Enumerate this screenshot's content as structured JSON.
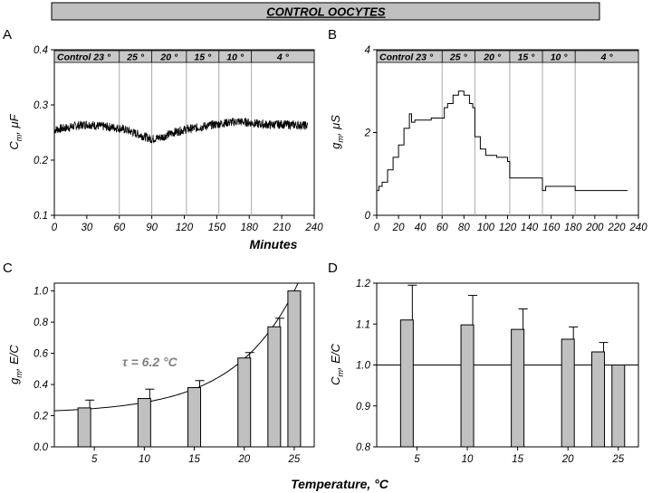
{
  "header": {
    "title": "CONTROL OOCYTES",
    "bg": "#c0c0c0"
  },
  "shared": {
    "minutes_label": "Minutes",
    "temperature_label": "Temperature, °C"
  },
  "panel_letters": [
    "A",
    "B",
    "C",
    "D"
  ],
  "condition_bar": {
    "bg": "#c8c8c8",
    "segments": [
      {
        "label": "Control 23 °",
        "from": 0,
        "to": 60
      },
      {
        "label": "25 °",
        "from": 60,
        "to": 90
      },
      {
        "label": "20 °",
        "from": 90,
        "to": 122
      },
      {
        "label": "15 °",
        "from": 122,
        "to": 152
      },
      {
        "label": "10 °",
        "from": 152,
        "to": 182
      },
      {
        "label": "4 °",
        "from": 182,
        "to": 240
      }
    ]
  },
  "chart_data": [
    {
      "panel": "A",
      "type": "line",
      "ylabel": "Cm, μF",
      "ylabel_main": "C",
      "ylabel_sub": "m",
      "ylabel_rest": ", μF",
      "xlim": [
        0,
        240
      ],
      "ylim": [
        0.1,
        0.4
      ],
      "xticks": [
        0,
        30,
        60,
        90,
        120,
        150,
        180,
        210,
        240
      ],
      "yticks": [
        0.1,
        0.2,
        0.3,
        0.4
      ],
      "ytick_labels": [
        "0.1",
        "0.2",
        "0.3",
        "0.4"
      ],
      "vlines": [
        60,
        90,
        122,
        152,
        182
      ],
      "x": [
        0,
        10,
        20,
        30,
        40,
        50,
        60,
        70,
        80,
        90,
        100,
        110,
        120,
        130,
        140,
        150,
        160,
        170,
        180,
        190,
        200,
        210,
        220,
        230,
        234
      ],
      "y": [
        0.255,
        0.258,
        0.262,
        0.265,
        0.262,
        0.26,
        0.258,
        0.252,
        0.245,
        0.238,
        0.242,
        0.25,
        0.255,
        0.258,
        0.262,
        0.265,
        0.268,
        0.27,
        0.268,
        0.265,
        0.264,
        0.265,
        0.264,
        0.263,
        0.262
      ],
      "noise": 0.008
    },
    {
      "panel": "B",
      "type": "line",
      "ylabel": "gm, μS",
      "ylabel_main": "g",
      "ylabel_sub": "m",
      "ylabel_rest": ", μS",
      "xlim": [
        0,
        240
      ],
      "ylim": [
        0,
        4
      ],
      "xticks": [
        0,
        20,
        40,
        60,
        80,
        100,
        120,
        140,
        160,
        180,
        200,
        220,
        240
      ],
      "yticks": [
        0,
        2,
        4
      ],
      "ytick_labels": [
        "0",
        "2",
        "4"
      ],
      "vlines": [
        60,
        90,
        122,
        152,
        182
      ],
      "x": [
        0,
        2,
        5,
        10,
        15,
        20,
        25,
        30,
        32,
        35,
        40,
        45,
        50,
        55,
        60,
        62,
        65,
        70,
        75,
        80,
        85,
        88,
        90,
        95,
        100,
        110,
        120,
        122,
        125,
        130,
        140,
        150,
        152,
        155,
        160,
        170,
        180,
        182,
        190,
        200,
        210,
        220,
        230
      ],
      "y": [
        0.6,
        0.7,
        0.8,
        1.1,
        1.4,
        1.7,
        2.1,
        2.45,
        2.25,
        2.3,
        2.3,
        2.3,
        2.35,
        2.35,
        2.35,
        2.6,
        2.7,
        2.9,
        3.0,
        2.9,
        2.7,
        2.6,
        1.9,
        1.6,
        1.45,
        1.4,
        1.3,
        0.9,
        0.9,
        0.9,
        0.9,
        0.9,
        0.6,
        0.7,
        0.7,
        0.7,
        0.7,
        0.6,
        0.6,
        0.6,
        0.6,
        0.6,
        0.6
      ]
    },
    {
      "panel": "C",
      "type": "bar",
      "ylabel": "gm, E/C",
      "ylabel_main": "g",
      "ylabel_sub": "m",
      "ylabel_rest": ", E/C",
      "xlim": [
        1,
        27
      ],
      "ylim": [
        0,
        1.05
      ],
      "xticks": [
        5,
        10,
        15,
        20,
        25
      ],
      "yticks": [
        0,
        0.2,
        0.4,
        0.6,
        0.8,
        1.0
      ],
      "ytick_labels": [
        "0.0",
        "0.2",
        "0.4",
        "0.6",
        "0.8",
        "1.0"
      ],
      "x": [
        4,
        10,
        15,
        20,
        23,
        25
      ],
      "values": [
        0.25,
        0.31,
        0.38,
        0.57,
        0.77,
        1.0
      ],
      "errors": [
        0.05,
        0.06,
        0.045,
        0.035,
        0.055,
        0
      ],
      "bar_color": "#c0c0c0",
      "fit": {
        "type": "exponential",
        "tau": 6.2,
        "ref_x": 25,
        "ref_y": 1.0,
        "offset": 0.215
      },
      "annotation": "τ = 6.2 °C",
      "annotation_color": "#808080"
    },
    {
      "panel": "D",
      "type": "bar",
      "ylabel": "Cm, E/C",
      "ylabel_main": "C",
      "ylabel_sub": "m",
      "ylabel_rest": ", E/C",
      "xlim": [
        1,
        27
      ],
      "ylim": [
        0.8,
        1.2
      ],
      "xticks": [
        5,
        10,
        15,
        20,
        25
      ],
      "yticks": [
        0.8,
        0.9,
        1.0,
        1.1,
        1.2
      ],
      "ytick_labels": [
        "0.8",
        "0.9",
        "1.0",
        "1.1",
        "1.2"
      ],
      "x": [
        4,
        10,
        15,
        20,
        23,
        25
      ],
      "values": [
        1.11,
        1.098,
        1.087,
        1.063,
        1.032,
        1.0
      ],
      "errors": [
        0.085,
        0.072,
        0.05,
        0.03,
        0.023,
        0
      ],
      "bar_color": "#c0c0c0",
      "hline": 1.0
    }
  ]
}
